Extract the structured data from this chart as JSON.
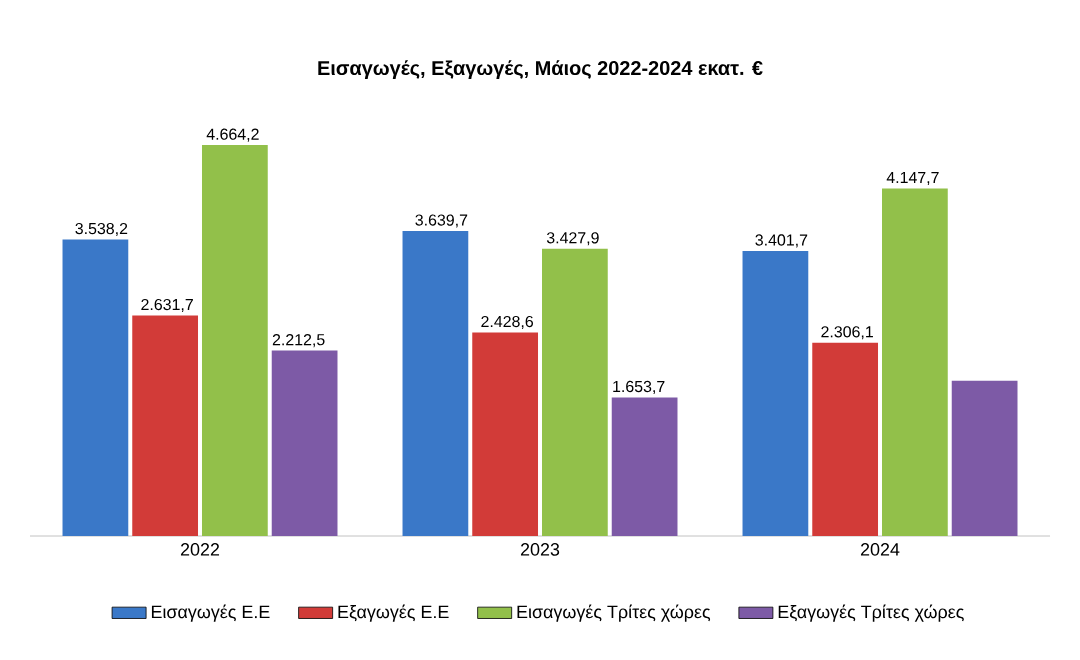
{
  "chart_data": {
    "type": "bar",
    "title": "Εισαγωγές, Εξαγωγές, Μάιος 2022-2024 εκατ. €",
    "categories": [
      "2022",
      "2023",
      "2024"
    ],
    "series": [
      {
        "name": "Εισαγωγές Ε.Ε",
        "color": "#3a78c8",
        "values": [
          3538.2,
          3639.7,
          3401.7
        ],
        "value_labels": [
          "3.538,2",
          "3.639,7",
          "3.401,7"
        ]
      },
      {
        "name": "Εξαγωγές  Ε.Ε",
        "color": "#d23b38",
        "values": [
          2631.7,
          2428.6,
          2306.1
        ],
        "value_labels": [
          "2.631,7",
          "2.428,6",
          "2.306,1"
        ]
      },
      {
        "name": "Εισαγωγές Τρίτες χώρες",
        "color": "#92c04a",
        "values": [
          4664.2,
          3427.9,
          4147.7
        ],
        "value_labels": [
          "4.664,2",
          "3.427,9",
          "4.147,7"
        ]
      },
      {
        "name": "Εξαγωγές Τρίτες χώρες",
        "color": "#7d5aa6",
        "values": [
          2212.5,
          1653.7,
          1853
        ],
        "value_labels": [
          "2.212,5",
          "1.653,7",
          null
        ]
      }
    ],
    "legend": "bottom"
  }
}
